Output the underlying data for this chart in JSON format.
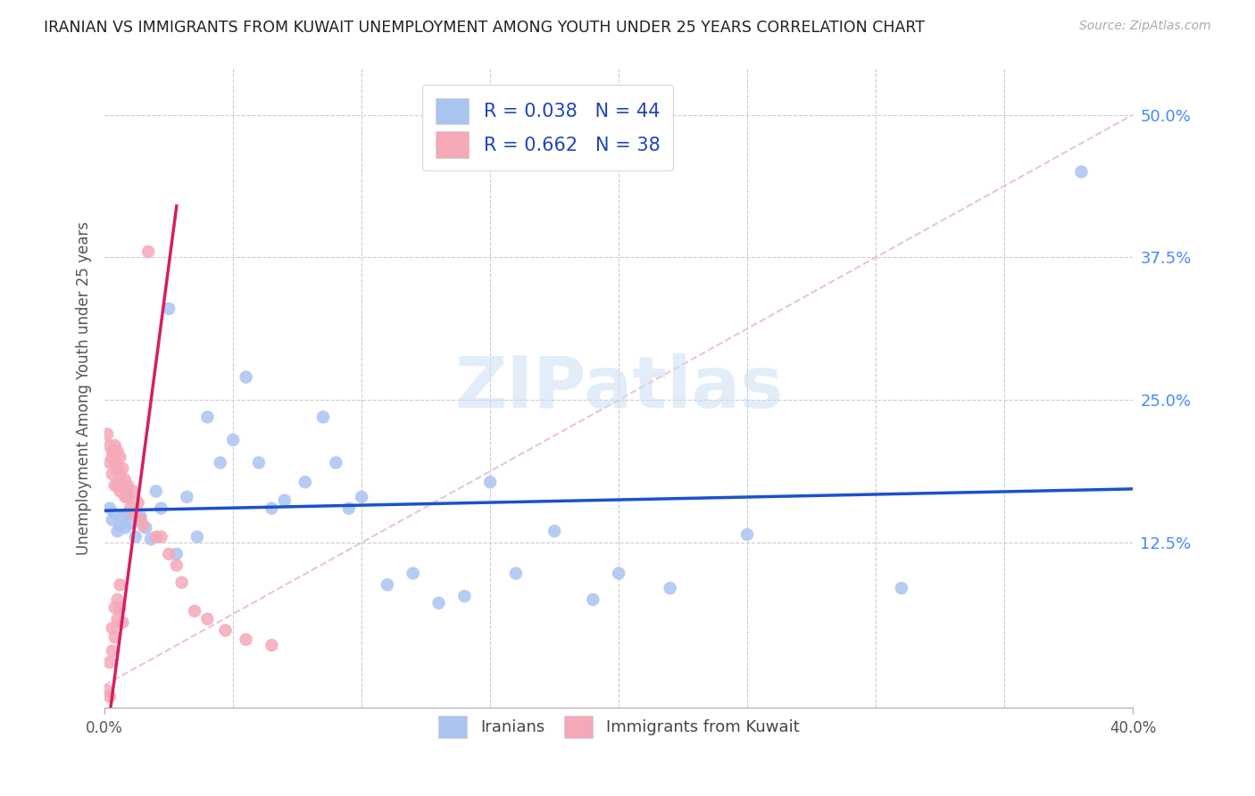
{
  "title": "IRANIAN VS IMMIGRANTS FROM KUWAIT UNEMPLOYMENT AMONG YOUTH UNDER 25 YEARS CORRELATION CHART",
  "source": "Source: ZipAtlas.com",
  "ylabel": "Unemployment Among Youth under 25 years",
  "xlim": [
    0,
    0.4
  ],
  "ylim": [
    -0.02,
    0.54
  ],
  "yticks_right": [
    0.125,
    0.25,
    0.375,
    0.5
  ],
  "ytick_labels_right": [
    "12.5%",
    "25.0%",
    "37.5%",
    "50.0%"
  ],
  "R_blue": 0.038,
  "N_blue": 44,
  "R_pink": 0.662,
  "N_pink": 38,
  "blue_color": "#aac4f0",
  "blue_line_color": "#1a52cc",
  "pink_color": "#f5a8b8",
  "pink_line_color": "#d42060",
  "diag_color": "#e8c0c8",
  "legend_blue_label": "Iranians",
  "legend_pink_label": "Immigrants from Kuwait",
  "watermark": "ZIPatlas",
  "blue_scatter_x": [
    0.002,
    0.003,
    0.004,
    0.005,
    0.006,
    0.007,
    0.008,
    0.009,
    0.01,
    0.012,
    0.014,
    0.016,
    0.018,
    0.02,
    0.022,
    0.025,
    0.028,
    0.032,
    0.036,
    0.04,
    0.045,
    0.05,
    0.055,
    0.06,
    0.065,
    0.07,
    0.078,
    0.085,
    0.09,
    0.095,
    0.1,
    0.11,
    0.12,
    0.13,
    0.14,
    0.15,
    0.16,
    0.175,
    0.19,
    0.2,
    0.22,
    0.25,
    0.31,
    0.38
  ],
  "blue_scatter_y": [
    0.155,
    0.145,
    0.15,
    0.135,
    0.14,
    0.148,
    0.138,
    0.15,
    0.142,
    0.13,
    0.148,
    0.138,
    0.128,
    0.17,
    0.155,
    0.33,
    0.115,
    0.165,
    0.13,
    0.235,
    0.195,
    0.215,
    0.27,
    0.195,
    0.155,
    0.162,
    0.178,
    0.235,
    0.195,
    0.155,
    0.165,
    0.088,
    0.098,
    0.072,
    0.078,
    0.178,
    0.098,
    0.135,
    0.075,
    0.098,
    0.085,
    0.132,
    0.085,
    0.45
  ],
  "pink_scatter_x": [
    0.001,
    0.002,
    0.002,
    0.003,
    0.003,
    0.003,
    0.004,
    0.004,
    0.004,
    0.005,
    0.005,
    0.005,
    0.006,
    0.006,
    0.006,
    0.007,
    0.007,
    0.008,
    0.008,
    0.009,
    0.009,
    0.01,
    0.011,
    0.012,
    0.013,
    0.014,
    0.015,
    0.017,
    0.02,
    0.022,
    0.025,
    0.028,
    0.03,
    0.035,
    0.04,
    0.047,
    0.055,
    0.065
  ],
  "pink_scatter_y": [
    0.22,
    0.195,
    0.21,
    0.2,
    0.185,
    0.205,
    0.195,
    0.21,
    0.175,
    0.175,
    0.19,
    0.205,
    0.185,
    0.2,
    0.17,
    0.175,
    0.19,
    0.165,
    0.18,
    0.165,
    0.175,
    0.155,
    0.17,
    0.15,
    0.16,
    0.145,
    0.14,
    0.38,
    0.13,
    0.13,
    0.115,
    0.105,
    0.09,
    0.065,
    0.058,
    0.048,
    0.04,
    0.035
  ],
  "pink_scatter_x_bottom": [
    0.001,
    0.002,
    0.002,
    0.003,
    0.003,
    0.004,
    0.004,
    0.005,
    0.005,
    0.006,
    0.006,
    0.007
  ],
  "pink_scatter_y_bottom": [
    -0.005,
    -0.01,
    0.02,
    0.03,
    0.05,
    0.068,
    0.042,
    0.058,
    0.075,
    0.088,
    0.068,
    0.055
  ]
}
